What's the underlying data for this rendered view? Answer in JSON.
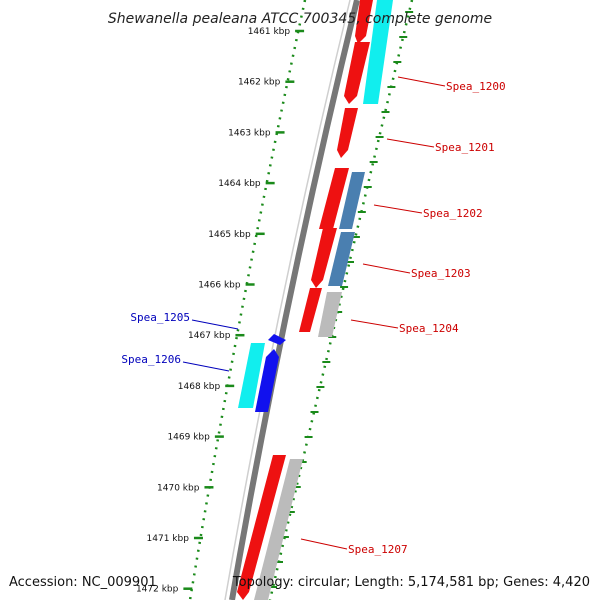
{
  "title": "Shewanella pealeana ATCC 700345, complete genome",
  "accession": "Accession: NC_009901",
  "summary": "Topology: circular; Length: 5,174,581 bp; Genes: 4,420",
  "scale": {
    "ticks": [
      {
        "kbp": 1461,
        "label": "1461 kbp"
      },
      {
        "kbp": 1462,
        "label": "1462 kbp"
      },
      {
        "kbp": 1463,
        "label": "1463 kbp"
      },
      {
        "kbp": 1464,
        "label": "1464 kbp"
      },
      {
        "kbp": 1465,
        "label": "1465 kbp"
      },
      {
        "kbp": 1466,
        "label": "1466 kbp"
      },
      {
        "kbp": 1467,
        "label": "1467 kbp"
      },
      {
        "kbp": 1468,
        "label": "1468 kbp"
      },
      {
        "kbp": 1469,
        "label": "1469 kbp"
      },
      {
        "kbp": 1470,
        "label": "1470 kbp"
      },
      {
        "kbp": 1471,
        "label": "1471 kbp"
      },
      {
        "kbp": 1472,
        "label": "1472 kbp"
      }
    ]
  },
  "colors": {
    "backbone": "#777777",
    "scale_dots": "#1a8a1a",
    "cds_red": "#ee1111",
    "cds_cyan": "#11eeee",
    "cds_steel": "#4a7fb0",
    "cds_gray": "#bbbbbb",
    "cds_blue": "#1111ee",
    "label_forward": "#cc0000",
    "label_reverse": "#0000bb"
  },
  "genes": [
    {
      "label": "Spea_1200",
      "strand": "forward"
    },
    {
      "label": "Spea_1201",
      "strand": "forward"
    },
    {
      "label": "Spea_1202",
      "strand": "forward"
    },
    {
      "label": "Spea_1203",
      "strand": "forward"
    },
    {
      "label": "Spea_1204",
      "strand": "forward"
    },
    {
      "label": "Spea_1205",
      "strand": "reverse"
    },
    {
      "label": "Spea_1206",
      "strand": "reverse"
    },
    {
      "label": "Spea_1207",
      "strand": "forward"
    }
  ]
}
